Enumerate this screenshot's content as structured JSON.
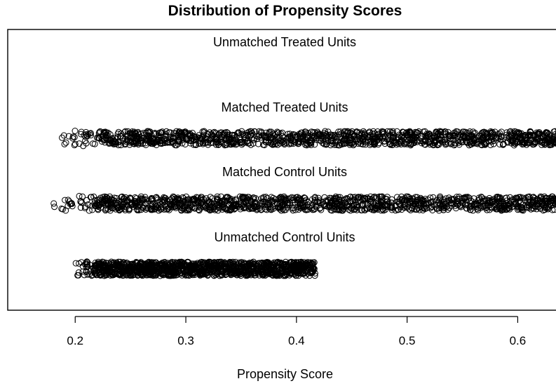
{
  "chart_data": {
    "type": "scatter",
    "title": "Distribution of Propensity Scores",
    "xlabel": "Propensity Score",
    "ylabel": "",
    "xlim": [
      0.139,
      0.646
    ],
    "xticks": [
      "0.2",
      "0.3",
      "0.4",
      "0.5",
      "0.6"
    ],
    "xtick_values": [
      0.2,
      0.3,
      0.4,
      0.5,
      0.6
    ],
    "grid": false,
    "marker": "open-circle",
    "point_color": "#000000",
    "groups": [
      {
        "label": "Unmatched Treated Units",
        "min": null,
        "max": null,
        "n_points": 0
      },
      {
        "label": "Matched Treated Units",
        "min": 0.184,
        "max": 0.643
      },
      {
        "label": "Matched Control Units",
        "min": 0.18,
        "max": 0.643
      },
      {
        "label": "Unmatched Control Units",
        "min": 0.2,
        "max": 0.417
      }
    ]
  }
}
